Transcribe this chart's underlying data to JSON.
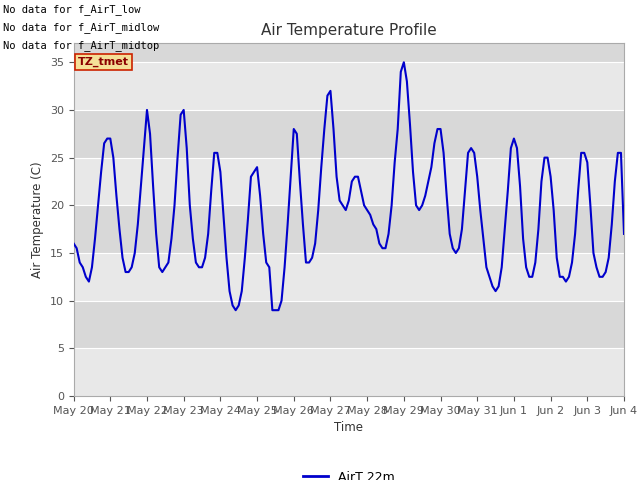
{
  "title": "Air Temperature Profile",
  "xlabel": "Time",
  "ylabel": "Air Temperature (C)",
  "ylim": [
    0,
    37
  ],
  "yticks": [
    0,
    5,
    10,
    15,
    20,
    25,
    30,
    35
  ],
  "x_labels": [
    "May 20",
    "May 21",
    "May 22",
    "May 23",
    "May 24",
    "May 25",
    "May 26",
    "May 27",
    "May 28",
    "May 29",
    "May 30",
    "May 31",
    "Jun 1",
    "Jun 2",
    "Jun 3",
    "Jun 4"
  ],
  "line_color": "#0000CC",
  "line_width": 1.5,
  "legend_label": "AirT 22m",
  "no_data_texts": [
    "No data for f_AirT_low",
    "No data for f_AirT_midlow",
    "No data for f_AirT_midtop"
  ],
  "tz_label": "TZ_tmet",
  "figure_bg_color": "#ffffff",
  "plot_bg_color_light": "#f0f0f0",
  "plot_bg_color_dark": "#e0e0e0",
  "grid_color": "#ffffff",
  "band_colors": [
    "#e8e8e8",
    "#d8d8d8"
  ],
  "time_points": [
    0.0,
    0.083,
    0.167,
    0.25,
    0.333,
    0.417,
    0.5,
    0.583,
    0.667,
    0.75,
    0.833,
    0.917,
    1.0,
    1.083,
    1.167,
    1.25,
    1.333,
    1.417,
    1.5,
    1.583,
    1.667,
    1.75,
    1.833,
    1.917,
    2.0,
    2.083,
    2.167,
    2.25,
    2.333,
    2.417,
    2.5,
    2.583,
    2.667,
    2.75,
    2.833,
    2.917,
    3.0,
    3.083,
    3.167,
    3.25,
    3.333,
    3.417,
    3.5,
    3.583,
    3.667,
    3.75,
    3.833,
    3.917,
    4.0,
    4.083,
    4.167,
    4.25,
    4.333,
    4.417,
    4.5,
    4.583,
    4.667,
    4.75,
    4.833,
    4.917,
    5.0,
    5.083,
    5.167,
    5.25,
    5.333,
    5.417,
    5.5,
    5.583,
    5.667,
    5.75,
    5.833,
    5.917,
    6.0,
    6.083,
    6.167,
    6.25,
    6.333,
    6.417,
    6.5,
    6.583,
    6.667,
    6.75,
    6.833,
    6.917,
    7.0,
    7.083,
    7.167,
    7.25,
    7.333,
    7.417,
    7.5,
    7.583,
    7.667,
    7.75,
    7.833,
    7.917,
    8.0,
    8.083,
    8.167,
    8.25,
    8.333,
    8.417,
    8.5,
    8.583,
    8.667,
    8.75,
    8.833,
    8.917,
    9.0,
    9.083,
    9.167,
    9.25,
    9.333,
    9.417,
    9.5,
    9.583,
    9.667,
    9.75,
    9.833,
    9.917,
    10.0,
    10.083,
    10.167,
    10.25,
    10.333,
    10.417,
    10.5,
    10.583,
    10.667,
    10.75,
    10.833,
    10.917,
    11.0,
    11.083,
    11.167,
    11.25,
    11.333,
    11.417,
    11.5,
    11.583,
    11.667,
    11.75,
    11.833,
    11.917,
    12.0,
    12.083,
    12.167,
    12.25,
    12.333,
    12.417,
    12.5,
    12.583,
    12.667,
    12.75,
    12.833,
    12.917,
    13.0,
    13.083,
    13.167,
    13.25,
    13.333,
    13.417,
    13.5,
    13.583,
    13.667,
    13.75,
    13.833,
    13.917,
    14.0,
    14.083,
    14.167,
    14.25,
    14.333,
    14.417,
    14.5,
    14.583,
    14.667,
    14.75,
    14.833,
    14.917,
    15.0
  ],
  "temp_values": [
    16.0,
    15.5,
    14.0,
    13.5,
    12.5,
    12.0,
    13.5,
    16.5,
    20.0,
    23.5,
    26.5,
    27.0,
    27.0,
    25.0,
    21.0,
    17.5,
    14.5,
    13.0,
    13.0,
    13.5,
    15.0,
    18.0,
    22.0,
    26.0,
    30.0,
    27.5,
    22.0,
    17.0,
    13.5,
    13.0,
    13.5,
    14.0,
    16.5,
    20.0,
    25.0,
    29.5,
    30.0,
    26.0,
    20.0,
    16.5,
    14.0,
    13.5,
    13.5,
    14.5,
    17.0,
    21.5,
    25.5,
    25.5,
    23.5,
    19.0,
    14.5,
    11.0,
    9.5,
    9.0,
    9.5,
    11.0,
    14.5,
    18.5,
    23.0,
    23.5,
    24.0,
    21.0,
    17.0,
    14.0,
    13.5,
    9.0,
    9.0,
    9.0,
    10.0,
    13.5,
    18.0,
    23.0,
    28.0,
    27.5,
    22.5,
    18.0,
    14.0,
    14.0,
    14.5,
    16.0,
    19.5,
    24.0,
    28.0,
    31.5,
    32.0,
    28.0,
    23.0,
    20.5,
    20.0,
    19.5,
    20.5,
    22.5,
    23.0,
    23.0,
    21.5,
    20.0,
    19.5,
    19.0,
    18.0,
    17.5,
    16.0,
    15.5,
    15.5,
    17.0,
    20.0,
    24.5,
    28.0,
    34.0,
    35.0,
    33.0,
    28.5,
    23.5,
    20.0,
    19.5,
    20.0,
    21.0,
    22.5,
    24.0,
    26.5,
    28.0,
    28.0,
    25.5,
    21.0,
    17.0,
    15.5,
    15.0,
    15.5,
    17.5,
    21.5,
    25.5,
    26.0,
    25.5,
    23.0,
    19.5,
    16.5,
    13.5,
    12.5,
    11.5,
    11.0,
    11.5,
    13.5,
    17.5,
    21.5,
    26.0,
    27.0,
    26.0,
    22.0,
    16.5,
    13.5,
    12.5,
    12.5,
    14.0,
    17.5,
    22.5,
    25.0,
    25.0,
    23.0,
    19.5,
    14.5,
    12.5,
    12.5,
    12.0,
    12.5,
    14.0,
    17.0,
    21.5,
    25.5,
    25.5,
    24.5,
    20.0,
    15.0,
    13.5,
    12.5,
    12.5,
    13.0,
    14.5,
    18.0,
    22.5,
    25.5,
    25.5,
    17.0
  ]
}
